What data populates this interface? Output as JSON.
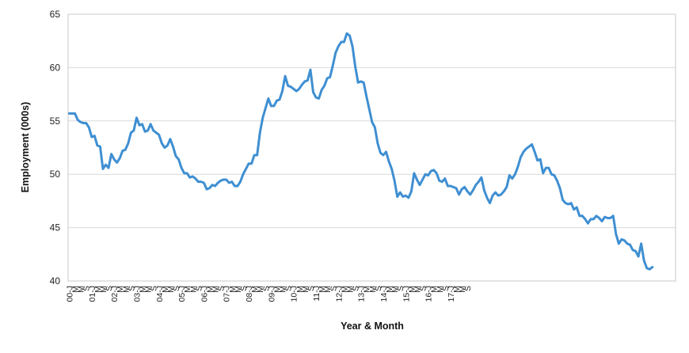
{
  "chart_data": {
    "type": "line",
    "xlabel": "Year & Month",
    "ylabel": "Employment (000s)",
    "ylim": [
      40,
      65
    ],
    "yticks": [
      40,
      45,
      50,
      55,
      60,
      65
    ],
    "grid": "horizontal",
    "x_tick_labels": [
      "00-J",
      "M",
      "M",
      "S",
      "01-J",
      "M",
      "M",
      "S",
      "02-J",
      "M",
      "M",
      "S",
      "03-J",
      "M",
      "M",
      "S",
      "04-J",
      "M",
      "M",
      "S",
      "05-J",
      "M",
      "M",
      "S",
      "06-J",
      "M",
      "M",
      "S",
      "07-J",
      "M",
      "M",
      "S",
      "08-J",
      "M",
      "M",
      "S",
      "09-J",
      "M",
      "M",
      "S",
      "10-J",
      "M",
      "M",
      "S",
      "11-J",
      "M",
      "M",
      "S",
      "12-J",
      "M",
      "M",
      "S",
      "13-J",
      "M",
      "M",
      "S",
      "14-J",
      "M",
      "M",
      "S",
      "15-J",
      "M",
      "M",
      "S",
      "16-J",
      "M",
      "M",
      "S",
      "17-J",
      "M",
      "M",
      "S"
    ],
    "x_tick_period_months": 2,
    "series_color": "#3f8fd2",
    "series": [
      {
        "values": [
          55.7,
          55.7,
          55.7,
          55.1,
          54.9,
          54.8,
          54.8,
          54.4,
          53.5,
          53.6,
          52.7,
          52.6,
          50.5,
          50.9,
          50.6,
          51.9,
          51.4,
          51.1,
          51.5,
          52.2,
          52.3,
          52.9,
          53.9,
          54.1,
          55.3,
          54.6,
          54.7,
          54.0,
          54.1,
          54.7,
          54.1,
          53.9,
          53.7,
          52.9,
          52.5,
          52.7,
          53.3,
          52.6,
          51.7,
          51.4,
          50.6,
          50.1,
          50.1,
          49.7,
          49.8,
          49.6,
          49.3,
          49.3,
          49.2,
          48.6,
          48.7,
          49.0,
          48.9,
          49.2,
          49.4,
          49.5,
          49.5,
          49.2,
          49.3,
          48.9,
          48.9,
          49.3,
          50.0,
          50.5,
          51.0,
          51.0,
          51.8,
          51.8,
          53.9,
          55.3,
          56.2,
          57.1,
          56.4,
          56.4,
          56.9,
          57.0,
          57.8,
          59.2,
          58.3,
          58.2,
          58.0,
          57.8,
          58.0,
          58.4,
          58.7,
          58.8,
          59.8,
          57.7,
          57.2,
          57.1,
          57.9,
          58.3,
          59.0,
          59.1,
          60.2,
          61.4,
          62.0,
          62.4,
          62.4,
          63.2,
          63.0,
          62.0,
          60.1,
          58.6,
          58.7,
          58.6,
          57.3,
          56.1,
          54.9,
          54.4,
          52.9,
          52.0,
          51.8,
          52.1,
          51.2,
          50.5,
          49.4,
          47.9,
          48.3,
          47.9,
          48.0,
          47.8,
          48.4,
          50.1,
          49.5,
          49.0,
          49.5,
          50.0,
          49.9,
          50.3,
          50.4,
          50.1,
          49.4,
          49.3,
          49.6,
          48.9,
          48.9,
          48.8,
          48.7,
          48.1,
          48.6,
          48.8,
          48.4,
          48.1,
          48.5,
          49.0,
          49.3,
          49.7,
          48.5,
          47.8,
          47.3,
          48.0,
          48.3,
          48.0,
          48.1,
          48.4,
          48.8,
          49.9,
          49.6,
          50.0,
          50.7,
          51.6,
          52.1,
          52.4,
          52.6,
          52.8,
          52.1,
          51.3,
          51.4,
          50.1,
          50.6,
          50.6,
          50.0,
          49.9,
          49.4,
          48.7,
          47.6,
          47.3,
          47.2,
          47.3,
          46.7,
          46.9,
          46.1,
          46.1,
          45.8,
          45.4,
          45.8,
          45.8,
          46.1,
          45.9,
          45.6,
          46.0,
          45.9,
          45.9,
          46.1,
          44.4,
          43.5,
          43.9,
          43.8,
          43.5,
          43.4,
          42.9,
          42.8,
          42.3,
          43.5,
          41.9,
          41.2,
          41.1,
          41.3
        ]
      }
    ]
  }
}
